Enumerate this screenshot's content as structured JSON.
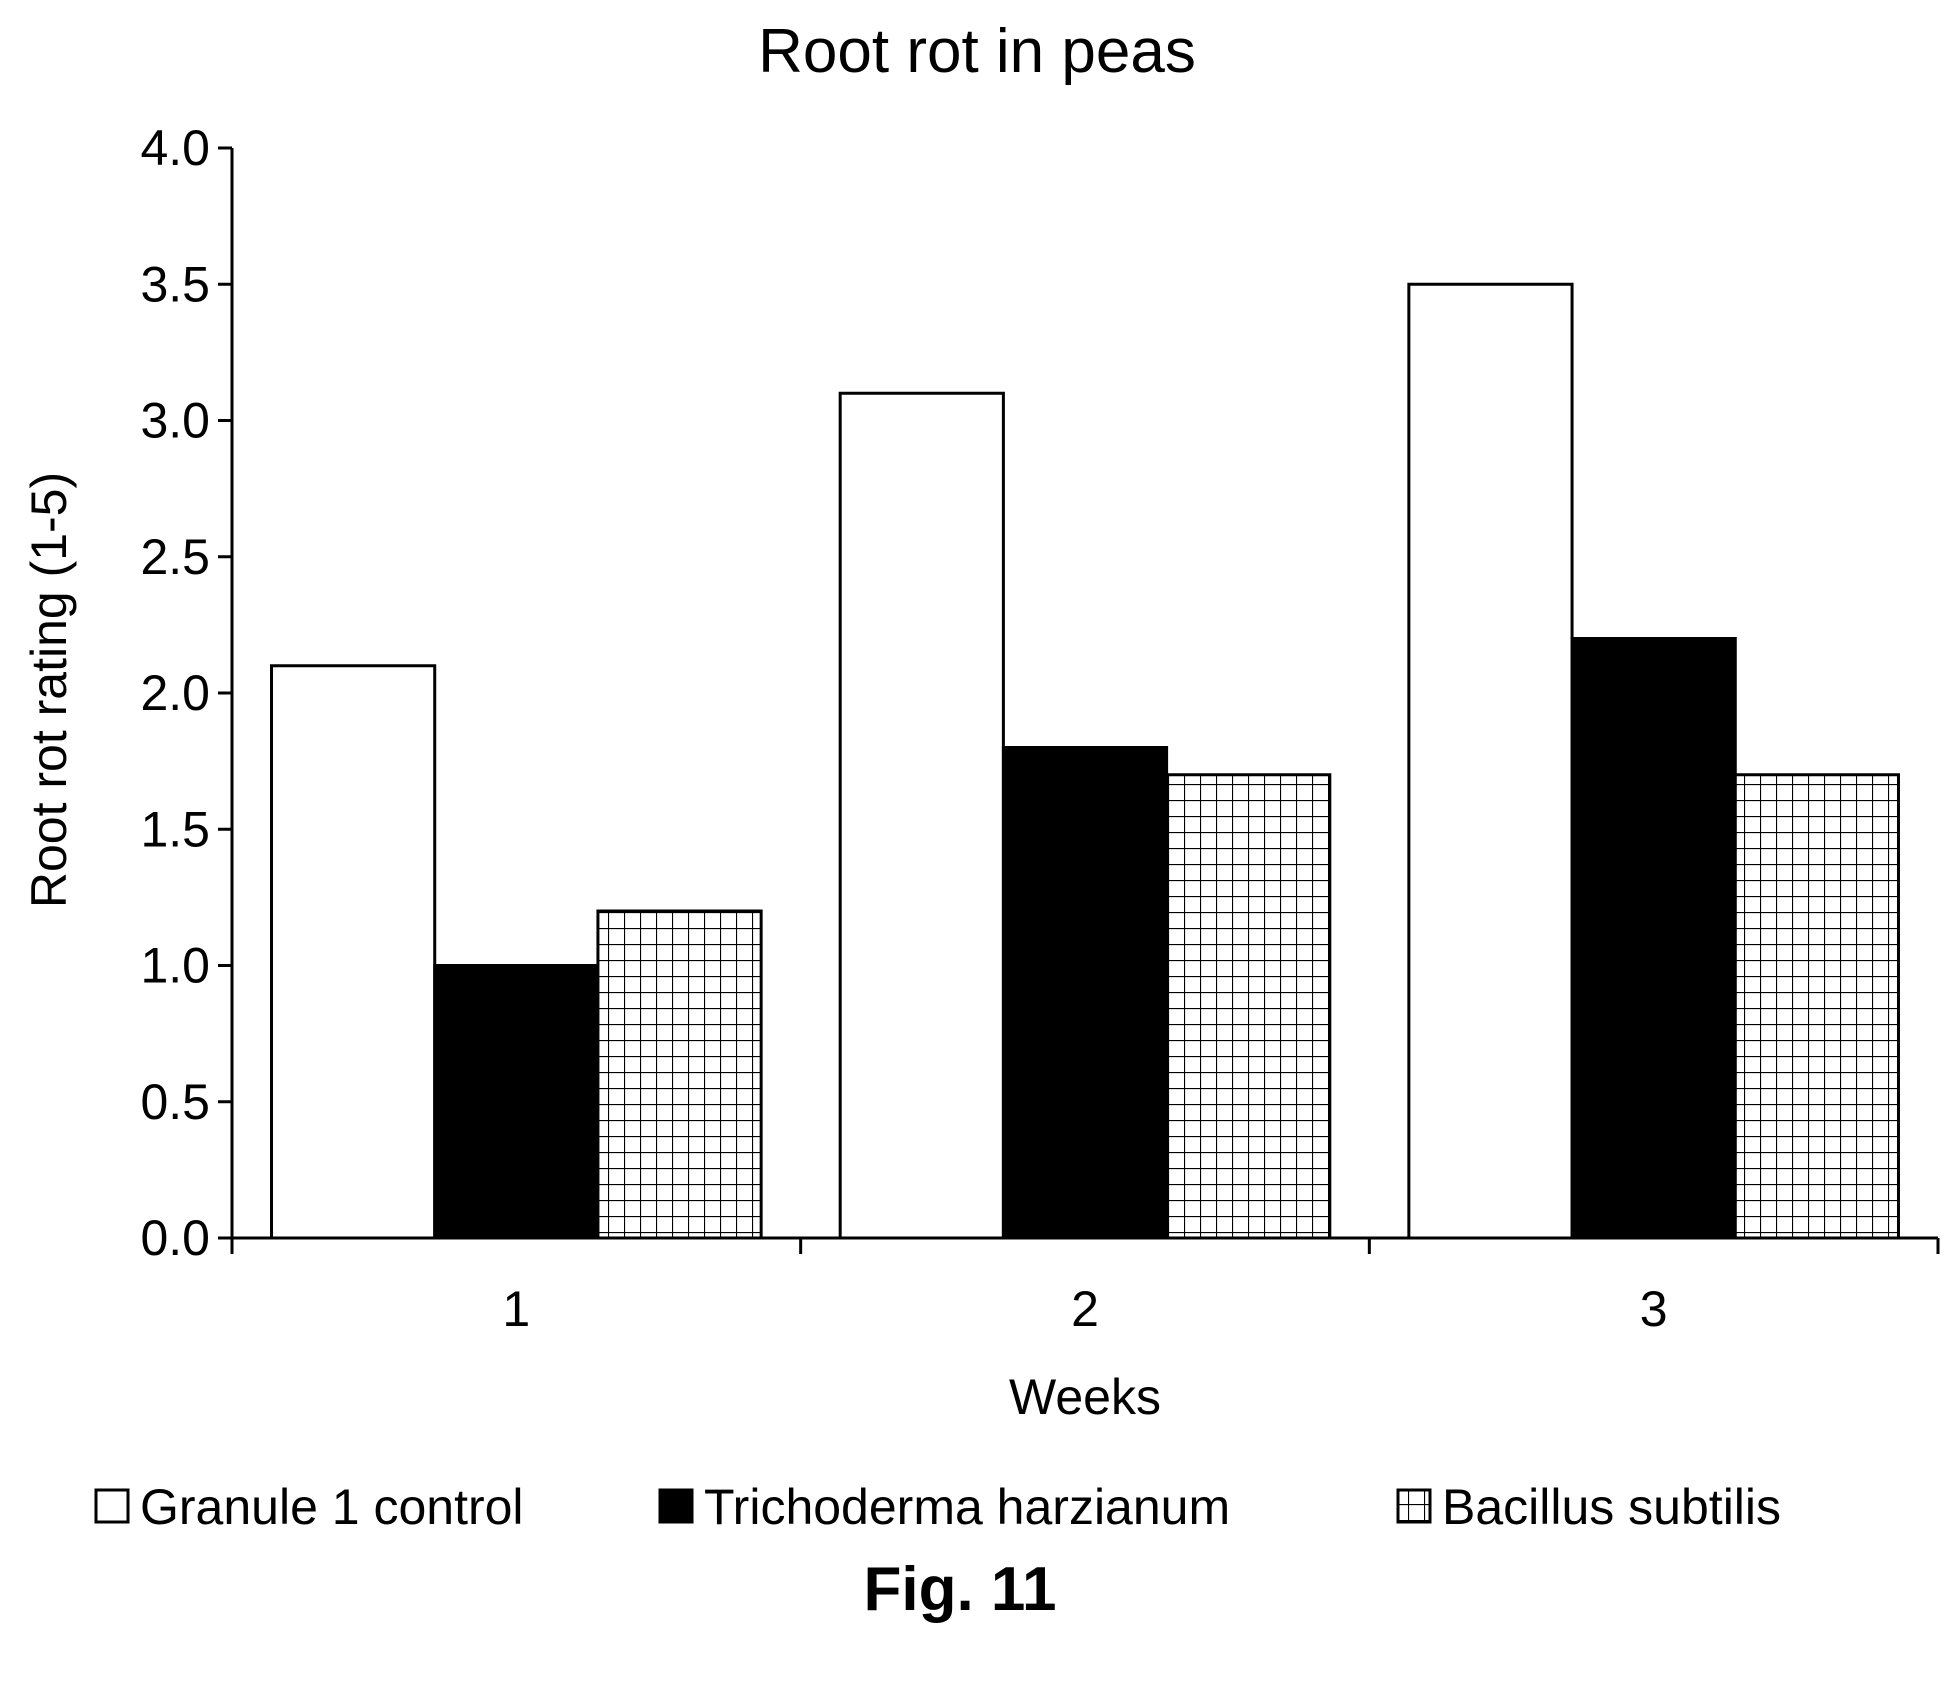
{
  "figure_label": "Fig. 11",
  "chart_data": {
    "type": "bar",
    "title": "Root rot in peas",
    "xlabel": "Weeks",
    "ylabel": "Root rot rating (1-5)",
    "categories": [
      "1",
      "2",
      "3"
    ],
    "ylim": [
      0,
      4.0
    ],
    "yticks": [
      "0.0",
      "0.5",
      "1.0",
      "1.5",
      "2.0",
      "2.5",
      "3.0",
      "3.5",
      "4.0"
    ],
    "grid": false,
    "legend_position": "bottom",
    "series": [
      {
        "name": "Granule 1 control",
        "values": [
          2.1,
          3.1,
          3.5
        ],
        "fill": "#ffffff",
        "pattern": "none"
      },
      {
        "name": "Trichoderma harzianum",
        "values": [
          1.0,
          1.8,
          2.2
        ],
        "fill": "#000000",
        "pattern": "none"
      },
      {
        "name": "Bacillus subtilis",
        "values": [
          1.2,
          1.7,
          1.7
        ],
        "fill": "#ffffff",
        "pattern": "grid"
      }
    ]
  }
}
